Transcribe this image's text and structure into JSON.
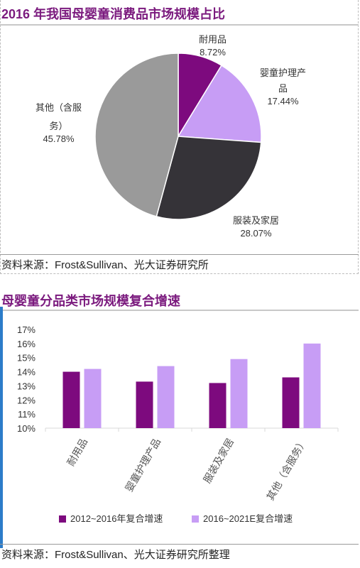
{
  "pie_panel": {
    "title": "2016 年我国母婴童消费品市场规模占比",
    "source_prefix": "资料来源：",
    "source_latin": "Frost&Sullivan",
    "source_suffix": "、光大证券研究所"
  },
  "bar_panel": {
    "title": "母婴童分品类市场规模复合增速",
    "source_prefix": "资料来源：",
    "source_latin": "Frost&Sullivan",
    "source_suffix": "、光大证券研究所整理"
  },
  "chart_data": [
    {
      "type": "pie",
      "title": "2016 年我国母婴童消费品市场规模占比",
      "slices": [
        {
          "label_line1": "耐用品",
          "label_line2": "",
          "pct_label": "8.72%",
          "value": 8.72,
          "color": "#7d0a7e"
        },
        {
          "label_line1": "婴童护理产",
          "label_line2": "品",
          "pct_label": "17.44%",
          "value": 17.44,
          "color": "#c79df5"
        },
        {
          "label_line1": "服装及家居",
          "label_line2": "",
          "pct_label": "28.07%",
          "value": 28.07,
          "color": "#353338"
        },
        {
          "label_line1": "其他（含服",
          "label_line2": "务）",
          "pct_label": "45.78%",
          "value": 45.78,
          "color": "#9a9a9a"
        }
      ]
    },
    {
      "type": "bar",
      "title": "母婴童分品类市场规模复合增速",
      "categories": [
        "耐用品",
        "婴童护理产品",
        "服装及家居",
        "其他（含服务）"
      ],
      "series": [
        {
          "name": "2012~2016年复合增速",
          "values": [
            14.0,
            13.3,
            13.2,
            13.6
          ],
          "color": "#7d0a7e"
        },
        {
          "name": "2016~2021E复合增速",
          "values": [
            14.2,
            14.4,
            14.9,
            16.0
          ],
          "color": "#c79df5"
        }
      ],
      "yticks": [
        "10%",
        "11%",
        "12%",
        "13%",
        "14%",
        "15%",
        "16%",
        "17%"
      ],
      "ylim": [
        10,
        17
      ],
      "legend": "bottom",
      "grid": false
    }
  ]
}
